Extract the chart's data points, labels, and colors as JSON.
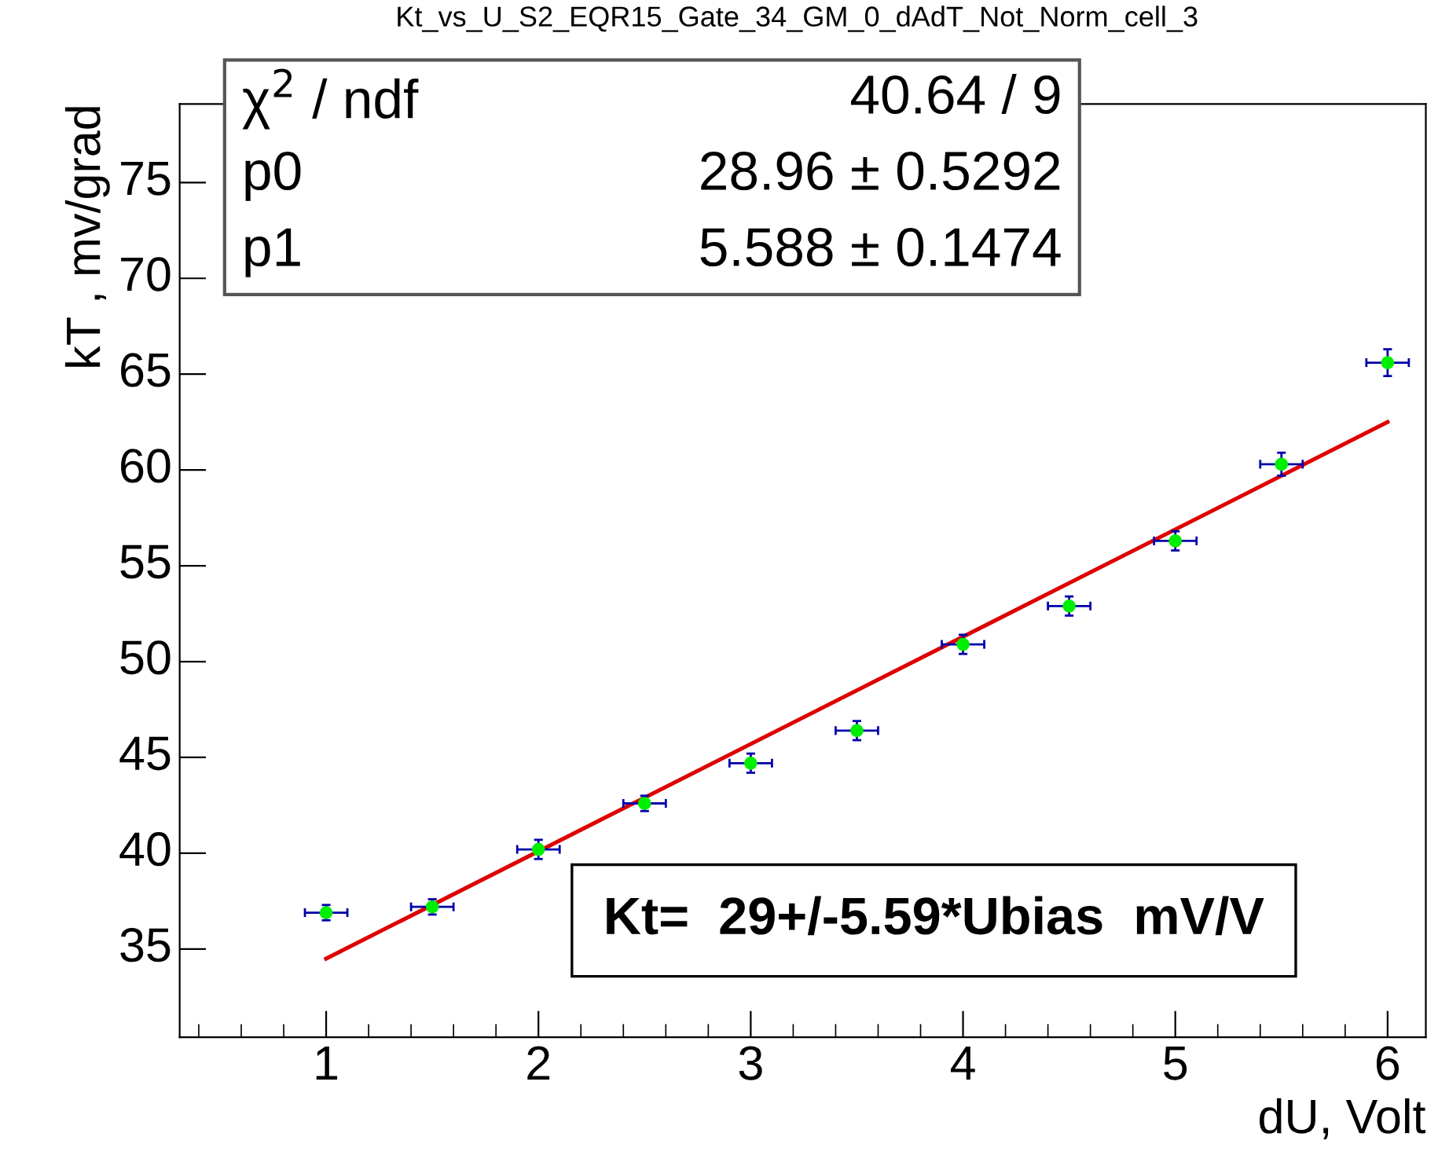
{
  "chart_data": {
    "type": "scatter",
    "title": "Kt_vs_U_S2_EQR15_Gate_34_GM_0_dAdT_Not_Norm_cell_3",
    "xlabel": "dU, Volt",
    "ylabel": "kT , mv/grad",
    "x": [
      1,
      1.5,
      2,
      2.5,
      3,
      3.5,
      4,
      4.5,
      5,
      5.5,
      6
    ],
    "series": [
      {
        "type": "scatter",
        "color": "#00ee00",
        "marker": "circle",
        "values": [
          36.9,
          37.2,
          40.2,
          42.6,
          44.7,
          46.4,
          50.9,
          52.9,
          56.3,
          60.3,
          65.6
        ],
        "errors": [
          0.4,
          0.4,
          0.5,
          0.4,
          0.5,
          0.5,
          0.5,
          0.5,
          0.5,
          0.6,
          0.7
        ],
        "xerrors": [
          0.1,
          0.1,
          0.1,
          0.1,
          0.1,
          0.1,
          0.1,
          0.1,
          0.1,
          0.1,
          0.1
        ]
      },
      {
        "type": "line",
        "color": "#dd0000",
        "x": [
          1,
          6
        ],
        "values": [
          34.5,
          62.5
        ]
      }
    ],
    "xlim": [
      0.31,
      6.18
    ],
    "ylim": [
      30.4,
      79.1
    ],
    "xticks": [
      1,
      2,
      3,
      4,
      5,
      6
    ],
    "yticks": [
      35,
      40,
      45,
      50,
      55,
      60,
      65,
      70,
      75
    ],
    "grid": false,
    "annotations": [
      "χ$^{2}$ / ndf",
      "40.64 / 9",
      "p0",
      "28.96 ± 0.5292",
      "p1",
      "5.588 ± 0.1474",
      "Kt=  29+/-5.59*Ubias  mV/V"
    ]
  }
}
